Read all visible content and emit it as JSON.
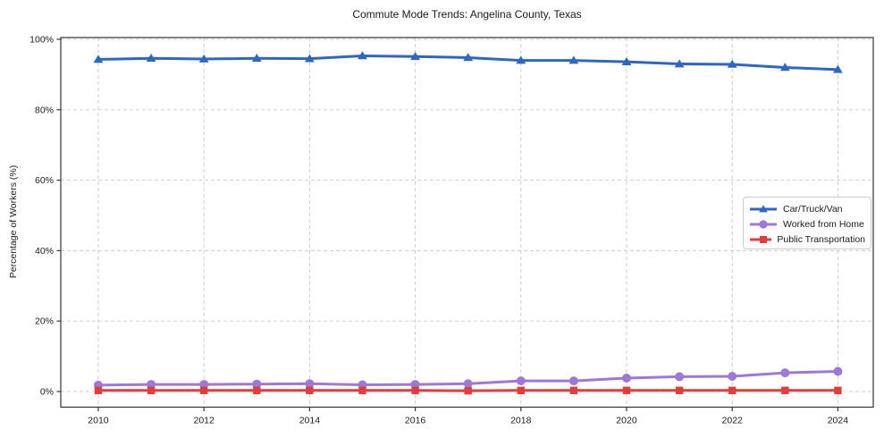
{
  "chart_data": {
    "type": "line",
    "title": "Commute Mode Trends: Angelina County, Texas",
    "xlabel": "",
    "ylabel": "Percentage of Workers (%)",
    "x": [
      2010,
      2011,
      2012,
      2013,
      2014,
      2015,
      2016,
      2017,
      2018,
      2019,
      2020,
      2021,
      2022,
      2023,
      2024
    ],
    "series": [
      {
        "name": "Car/Truck/Van",
        "marker": "triangle",
        "color": "#2d67c3",
        "values": [
          94.3,
          94.6,
          94.4,
          94.6,
          94.5,
          95.3,
          95.1,
          94.8,
          94.0,
          94.0,
          93.6,
          93.0,
          92.9,
          92.0,
          91.4
        ]
      },
      {
        "name": "Worked from Home",
        "marker": "circle",
        "color": "#9c78d8",
        "values": [
          1.8,
          2.0,
          2.0,
          2.1,
          2.2,
          1.9,
          2.0,
          2.2,
          3.0,
          3.0,
          3.8,
          4.2,
          4.3,
          5.3,
          5.7
        ]
      },
      {
        "name": "Public Transportation",
        "marker": "square",
        "color": "#e23d3d",
        "values": [
          0.3,
          0.3,
          0.3,
          0.3,
          0.3,
          0.3,
          0.3,
          0.2,
          0.3,
          0.3,
          0.3,
          0.3,
          0.3,
          0.3,
          0.3
        ]
      }
    ],
    "xticks": [
      2010,
      2012,
      2014,
      2016,
      2018,
      2020,
      2022,
      2024
    ],
    "xticklabels": [
      "2010",
      "2012",
      "2014",
      "2016",
      "2018",
      "2020",
      "2022",
      "2024"
    ],
    "yticks": [
      0,
      20,
      40,
      60,
      80,
      100
    ],
    "yticklabels": [
      "0%",
      "20%",
      "40%",
      "60%",
      "80%",
      "100%"
    ],
    "xlim": [
      2009.29,
      2024.67
    ],
    "ylim": [
      -4.45,
      100.5
    ],
    "grid": true,
    "grid_style": "dashed",
    "legend_position": "center right",
    "colors": {
      "axis": "#333333",
      "grid": "#c9c9c9",
      "text": "#1a1a1a",
      "background": "#ffffff"
    }
  }
}
